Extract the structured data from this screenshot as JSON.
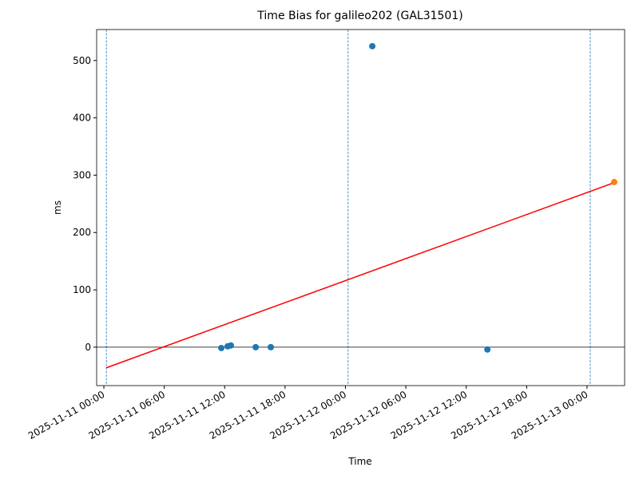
{
  "chart_data": {
    "type": "scatter",
    "title": "Time Bias for galileo202 (GAL31501)",
    "x_label": "Time",
    "y_label": "ms",
    "xlim": [
      "2025-11-10 23:17",
      "2025-11-13 03:44"
    ],
    "xticks": [
      "2025-11-11 00:00",
      "2025-11-11 06:00",
      "2025-11-11 12:00",
      "2025-11-11 18:00",
      "2025-11-12 00:00",
      "2025-11-12 06:00",
      "2025-11-12 12:00",
      "2025-11-12 18:00",
      "2025-11-13 00:00"
    ],
    "ylim": [
      -67,
      554
    ],
    "yticks": [
      0,
      100,
      200,
      300,
      400,
      500
    ],
    "hlines": [
      0
    ],
    "hline_color": "#000000",
    "vlines": [
      "2025-11-11 00:15",
      "2025-11-12 00:16",
      "2025-11-13 00:19"
    ],
    "vline_color": "#1f77b4",
    "series": [
      {
        "type": "scatter",
        "color": "#1f77b4",
        "x": [
          "2025-11-11 11:40",
          "2025-11-11 12:18",
          "2025-11-11 12:37",
          "2025-11-11 15:05",
          "2025-11-11 16:35",
          "2025-11-12 02:40",
          "2025-11-12 14:06"
        ],
        "values": [
          -1.5,
          1.5,
          3,
          0,
          0,
          525,
          -4
        ]
      },
      {
        "type": "line",
        "color": "#ff0000",
        "x": [
          "2025-11-11 00:14",
          "2025-11-13 02:42"
        ],
        "values": [
          -36,
          287
        ]
      },
      {
        "type": "scatter",
        "color": "#ff7f0e",
        "x": [
          "2025-11-13 02:42"
        ],
        "values": [
          288
        ]
      }
    ]
  }
}
